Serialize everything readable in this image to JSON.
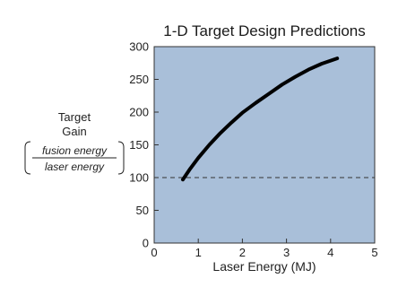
{
  "chart_data": {
    "type": "line",
    "title": "1-D Target Design Predictions",
    "xlabel": "Laser Energy (MJ)",
    "ylabel": {
      "line1": "Target",
      "line2": "Gain",
      "numerator": "fusion energy",
      "denominator": "laser energy"
    },
    "xlim": [
      0,
      5
    ],
    "ylim": [
      0,
      300
    ],
    "x_ticks": [
      "0",
      "1",
      "2",
      "3",
      "4",
      "5"
    ],
    "y_ticks": [
      "0",
      "50",
      "100",
      "150",
      "200",
      "250",
      "300"
    ],
    "grid": false,
    "reference_line": {
      "y": 100,
      "style": "dashed"
    },
    "series": [
      {
        "x": [
          0.65,
          0.8,
          1.0,
          1.25,
          1.5,
          1.75,
          2.0,
          2.3,
          2.6,
          2.9,
          3.2,
          3.5,
          3.8,
          4.15
        ],
        "y": [
          97,
          112,
          130,
          150,
          168,
          184,
          199,
          214,
          228,
          242,
          254,
          265,
          274,
          282
        ]
      }
    ],
    "colors": {
      "plot_background": "#a9bfd9",
      "line": "#000000",
      "reference_line": "#333333"
    }
  }
}
